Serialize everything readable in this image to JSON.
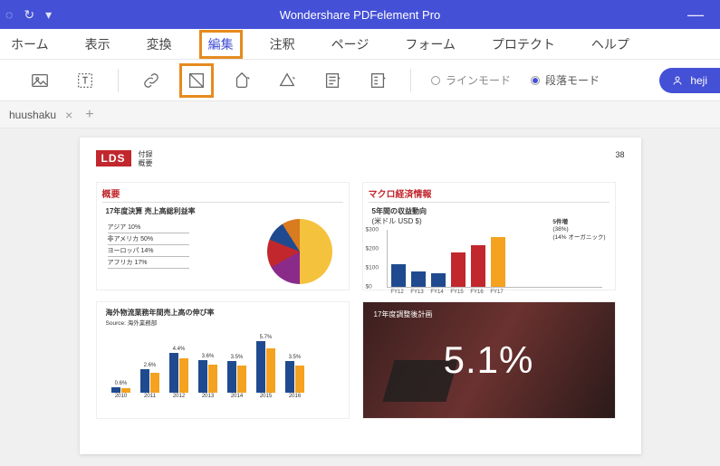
{
  "app": {
    "title": "Wondershare PDFelement Pro"
  },
  "titlebar_icons": {
    "back": "◌",
    "redo": "↻",
    "dropdown": "▾"
  },
  "menu": {
    "items": [
      "ホーム",
      "表示",
      "変換",
      "編集",
      "注釈",
      "ページ",
      "フォーム",
      "プロテクト",
      "ヘルプ"
    ],
    "active_index": 3
  },
  "toolbar": {
    "mode_line": "ラインモード",
    "mode_para": "段落モード"
  },
  "user": {
    "name": "heji"
  },
  "tab": {
    "name": "huushaku"
  },
  "doc": {
    "logo": "LDS",
    "header_line1": "付録",
    "header_line2": "概要",
    "page_number": "38",
    "panel1": {
      "title": "概要",
      "subtitle": "17年度決算 売上高総利益率",
      "items": [
        "アジア 10%",
        "非アメリカ 50%",
        "ヨーロッパ 14%",
        "アフリカ 17%"
      ],
      "pie": {
        "slices": [
          50,
          17,
          14,
          10,
          9
        ],
        "colors": [
          "#f4c23c",
          "#8a2b8a",
          "#c1272d",
          "#1f4a8f",
          "#d97b1f"
        ]
      }
    },
    "panel2": {
      "title": "マクロ経済情報",
      "subtitle1": "5年間の収益動向",
      "subtitle2": "(米ドル USD $)",
      "ylim": [
        0,
        300
      ],
      "ytick_step": 100,
      "categories": [
        "FY12",
        "FY13",
        "FY14",
        "FY15",
        "FY16",
        "FY17"
      ],
      "values": [
        120,
        80,
        70,
        180,
        220,
        260
      ],
      "colors": [
        "#1f4a8f",
        "#1f4a8f",
        "#1f4a8f",
        "#c1272d",
        "#c1272d",
        "#f4a21f"
      ],
      "side_note1": "5件増",
      "side_note2": "(38%)",
      "side_note3": "(14% オーガニック)"
    },
    "panel3": {
      "subtitle": "海外物流業務年間売上高の伸び率",
      "source": "Source: 海外業務部",
      "years": [
        "2010",
        "2011",
        "2012",
        "2013",
        "2014",
        "2015",
        "2016"
      ],
      "values": [
        0.6,
        2.6,
        4.4,
        3.6,
        3.5,
        5.7,
        3.5
      ],
      "labels": [
        "0.6%",
        "2.6%",
        "4.4%",
        "3.6%",
        "3.5%",
        "5.7%",
        "3.5%"
      ],
      "color_a": "#1f4a8f",
      "color_b": "#f4a21f",
      "max": 6.0
    },
    "panel4": {
      "caption": "17年度調整後計画",
      "percent": "5.1%"
    }
  }
}
